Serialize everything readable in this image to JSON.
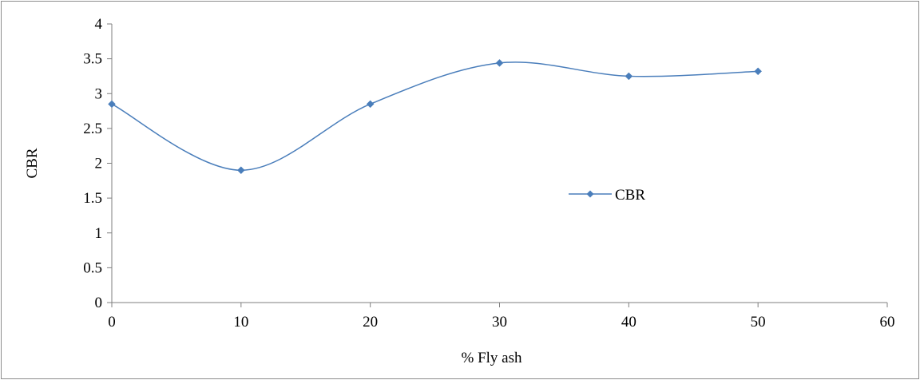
{
  "chart_data": {
    "type": "line",
    "smooth": true,
    "x": [
      0,
      10,
      20,
      30,
      40,
      50
    ],
    "series": [
      {
        "name": "CBR",
        "values": [
          2.85,
          1.9,
          2.85,
          3.44,
          3.25,
          3.32
        ]
      }
    ],
    "xlabel": "% Fly ash",
    "ylabel": "CBR",
    "xlim": [
      0,
      60
    ],
    "ylim": [
      0,
      4
    ],
    "xticks": [
      0,
      10,
      20,
      30,
      40,
      50,
      60
    ],
    "yticks": [
      0,
      0.5,
      1,
      1.5,
      2,
      2.5,
      3,
      3.5,
      4
    ],
    "xtick_labels": [
      "0",
      "10",
      "20",
      "30",
      "40",
      "50",
      "60"
    ],
    "ytick_labels": [
      "0",
      "0.5",
      "1",
      "1.5",
      "2",
      "2.5",
      "3",
      "3.5",
      "4"
    ],
    "grid": false,
    "legend_position": "right",
    "series_color": "#4a7ebb",
    "marker": "diamond"
  }
}
